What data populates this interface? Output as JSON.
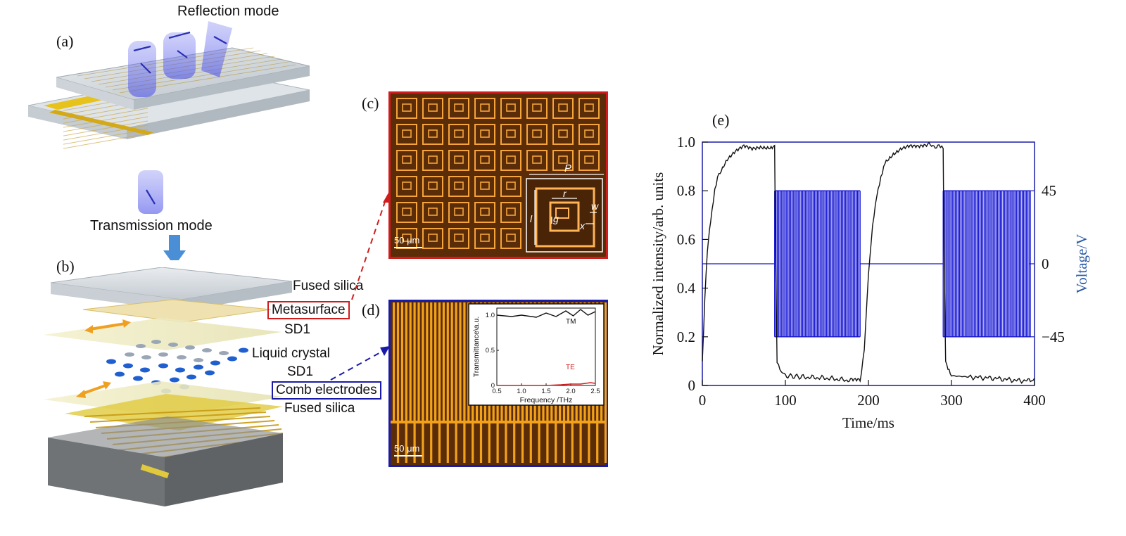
{
  "labels": {
    "panel_a": "(a)",
    "panel_b": "(b)",
    "panel_c": "(c)",
    "panel_d": "(d)",
    "panel_e": "(e)",
    "reflection_mode": "Reflection mode",
    "transmission_mode": "Transmission mode"
  },
  "stack_layers": {
    "fused_silica_top": "Fused silica",
    "metasurface": "Metasurface",
    "sd1_top": "SD1",
    "liquid_crystal": "Liquid crystal",
    "sd1_bottom": "SD1",
    "comb_electrodes": "Comb electrodes",
    "fused_silica_bottom": "Fused silica"
  },
  "micrograph_c": {
    "scale_bar": "50 μm",
    "inset_labels": {
      "period": "P",
      "ring": "r",
      "gap": "g",
      "width": "w",
      "length": "l",
      "offset": "x"
    },
    "colors": {
      "frame": "#d01c1c",
      "background": "#5a2c08",
      "pattern": "#f4a43a"
    }
  },
  "micrograph_d": {
    "scale_bar": "50 μm",
    "colors": {
      "frame": "#1a1aa8",
      "background": "#5a2c08",
      "pattern": "#f2a21a"
    },
    "inset_chart": {
      "type": "line",
      "xlabel": "Frequency /THz",
      "ylabel": "Transmittance\\a.u.",
      "xlim": [
        0.5,
        2.5
      ],
      "ylim": [
        0,
        1.1
      ],
      "xticks": [
        "0.5",
        "1.0",
        "1.5",
        "2.0",
        "2.5"
      ],
      "yticks": [
        "0",
        "0.5",
        "1.0"
      ],
      "series": [
        {
          "name": "TM",
          "color": "#111111",
          "x": [
            0.5,
            0.8,
            1.0,
            1.3,
            1.5,
            1.7,
            1.9,
            2.05,
            2.2,
            2.35,
            2.5
          ],
          "y": [
            1.0,
            0.98,
            1.0,
            0.97,
            1.03,
            0.98,
            1.06,
            0.99,
            1.08,
            1.0,
            1.05
          ]
        },
        {
          "name": "TE",
          "color": "#d01c1c",
          "x": [
            0.5,
            1.0,
            1.5,
            1.8,
            2.0,
            2.2,
            2.4,
            2.5
          ],
          "y": [
            0.0,
            0.0,
            0.0,
            0.01,
            0.02,
            0.02,
            0.04,
            0.03
          ]
        }
      ]
    }
  },
  "chart_data": {
    "type": "line",
    "xlabel": "Time/ms",
    "ylabel": "Normalized intensity/arb. units",
    "y2label": "Voltage/V",
    "xlim": [
      0,
      400
    ],
    "ylim": [
      0,
      1.0
    ],
    "y2lim": [
      -75,
      75
    ],
    "xticks": [
      "0",
      "100",
      "200",
      "300",
      "400"
    ],
    "yticks": [
      "0",
      "0.2",
      "0.4",
      "0.6",
      "0.8",
      "1.0"
    ],
    "y2ticks": [
      "−45",
      "0",
      "45"
    ],
    "series": [
      {
        "name": "Normalized intensity",
        "axis": "left",
        "color": "#111111",
        "x": [
          0,
          3,
          6,
          10,
          15,
          20,
          30,
          40,
          50,
          60,
          70,
          80,
          87,
          88,
          90,
          95,
          100,
          120,
          150,
          180,
          190,
          195,
          200,
          205,
          210,
          215,
          220,
          230,
          240,
          250,
          260,
          270,
          285,
          290,
          291,
          293,
          300,
          320,
          350,
          380,
          395,
          400
        ],
        "y": [
          0.1,
          0.35,
          0.55,
          0.68,
          0.8,
          0.87,
          0.93,
          0.96,
          0.98,
          0.97,
          0.98,
          0.98,
          0.98,
          0.6,
          0.1,
          0.05,
          0.04,
          0.035,
          0.03,
          0.02,
          0.02,
          0.15,
          0.45,
          0.65,
          0.78,
          0.86,
          0.92,
          0.95,
          0.97,
          0.98,
          0.98,
          0.99,
          0.98,
          0.98,
          0.55,
          0.1,
          0.04,
          0.035,
          0.03,
          0.02,
          0.02,
          0.03
        ]
      },
      {
        "name": "Voltage",
        "axis": "right",
        "color": "#1414d4",
        "segments": [
          {
            "x": [
              0,
              87
            ],
            "kind": "constant",
            "value": 0
          },
          {
            "x": [
              87,
              190
            ],
            "kind": "square",
            "amplitude": 45
          },
          {
            "x": [
              190,
              290
            ],
            "kind": "constant",
            "value": 0
          },
          {
            "x": [
              290,
              395
            ],
            "kind": "square",
            "amplitude": 45
          }
        ]
      }
    ],
    "colors": {
      "frame": "#1a1aa8",
      "voltage": "#1414d4",
      "intensity": "#111111",
      "y2label": "#2a5aa8"
    }
  }
}
